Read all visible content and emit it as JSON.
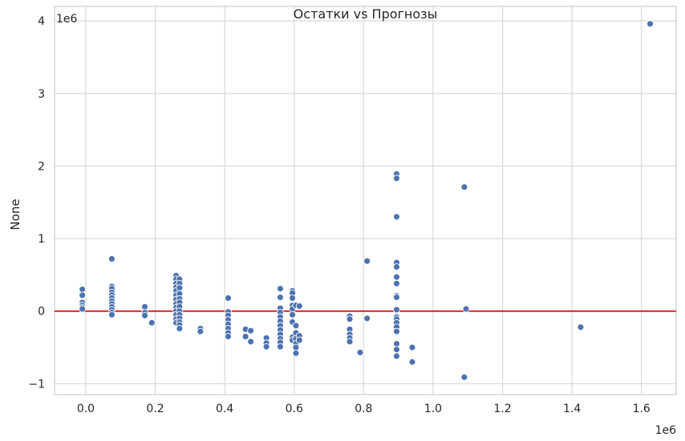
{
  "chart_data": {
    "type": "scatter",
    "title": "Остатки vs Прогнозы",
    "xlabel": "",
    "ylabel": "None",
    "x_offset_label": "1e6",
    "y_offset_label": "1e6",
    "xlim": [
      -0.09,
      1.7
    ],
    "ylim": [
      -1.15,
      4.2
    ],
    "xticks": [
      0.0,
      0.2,
      0.4,
      0.6,
      0.8,
      1.0,
      1.2,
      1.4,
      1.6
    ],
    "xtick_labels": [
      "0.0",
      "0.2",
      "0.4",
      "0.6",
      "0.8",
      "1.0",
      "1.2",
      "1.4",
      "1.6"
    ],
    "yticks": [
      -1,
      0,
      1,
      2,
      3,
      4
    ],
    "ytick_labels": [
      "−1",
      "0",
      "1",
      "2",
      "3",
      "4"
    ],
    "grid": true,
    "reference_line": {
      "y": 0,
      "color": "#e8000b"
    },
    "point_color": "#4c72b0",
    "points": [
      [
        -0.01,
        0.3
      ],
      [
        -0.01,
        0.22
      ],
      [
        -0.01,
        0.12
      ],
      [
        -0.01,
        0.08
      ],
      [
        -0.01,
        0.05
      ],
      [
        -0.01,
        0.03
      ],
      [
        0.075,
        0.72
      ],
      [
        0.075,
        0.34
      ],
      [
        0.075,
        0.31
      ],
      [
        0.075,
        0.26
      ],
      [
        0.075,
        0.22
      ],
      [
        0.075,
        0.18
      ],
      [
        0.075,
        0.14
      ],
      [
        0.075,
        0.1
      ],
      [
        0.075,
        0.06
      ],
      [
        0.075,
        0.02
      ],
      [
        0.075,
        -0.02
      ],
      [
        0.075,
        -0.05
      ],
      [
        0.17,
        0.06
      ],
      [
        0.17,
        -0.02
      ],
      [
        0.17,
        -0.06
      ],
      [
        0.19,
        -0.16
      ],
      [
        0.26,
        0.49
      ],
      [
        0.26,
        0.44
      ],
      [
        0.26,
        0.38
      ],
      [
        0.26,
        0.33
      ],
      [
        0.26,
        0.28
      ],
      [
        0.26,
        0.22
      ],
      [
        0.26,
        0.16
      ],
      [
        0.26,
        0.1
      ],
      [
        0.26,
        0.05
      ],
      [
        0.26,
        0.0
      ],
      [
        0.26,
        -0.05
      ],
      [
        0.26,
        -0.11
      ],
      [
        0.26,
        -0.16
      ],
      [
        0.27,
        0.44
      ],
      [
        0.27,
        0.38
      ],
      [
        0.27,
        0.32
      ],
      [
        0.27,
        0.24
      ],
      [
        0.27,
        0.17
      ],
      [
        0.27,
        0.12
      ],
      [
        0.27,
        0.06
      ],
      [
        0.27,
        0.0
      ],
      [
        0.27,
        -0.05
      ],
      [
        0.27,
        -0.1
      ],
      [
        0.27,
        -0.15
      ],
      [
        0.27,
        -0.19
      ],
      [
        0.27,
        -0.24
      ],
      [
        0.33,
        -0.24
      ],
      [
        0.33,
        -0.28
      ],
      [
        0.41,
        0.18
      ],
      [
        0.41,
        -0.01
      ],
      [
        0.41,
        -0.06
      ],
      [
        0.41,
        -0.12
      ],
      [
        0.41,
        -0.18
      ],
      [
        0.41,
        -0.24
      ],
      [
        0.41,
        -0.3
      ],
      [
        0.41,
        -0.35
      ],
      [
        0.46,
        -0.25
      ],
      [
        0.46,
        -0.35
      ],
      [
        0.475,
        -0.27
      ],
      [
        0.475,
        -0.42
      ],
      [
        0.52,
        -0.37
      ],
      [
        0.52,
        -0.44
      ],
      [
        0.52,
        -0.49
      ],
      [
        0.56,
        0.31
      ],
      [
        0.56,
        0.19
      ],
      [
        0.56,
        0.04
      ],
      [
        0.56,
        -0.02
      ],
      [
        0.56,
        -0.08
      ],
      [
        0.56,
        -0.14
      ],
      [
        0.56,
        -0.2
      ],
      [
        0.56,
        -0.26
      ],
      [
        0.56,
        -0.32
      ],
      [
        0.56,
        -0.38
      ],
      [
        0.56,
        -0.43
      ],
      [
        0.56,
        -0.49
      ],
      [
        0.595,
        0.28
      ],
      [
        0.595,
        0.25
      ],
      [
        0.595,
        0.18
      ],
      [
        0.595,
        0.08
      ],
      [
        0.595,
        0.03
      ],
      [
        0.595,
        -0.05
      ],
      [
        0.595,
        -0.15
      ],
      [
        0.595,
        -0.36
      ],
      [
        0.595,
        -0.4
      ],
      [
        0.605,
        0.08
      ],
      [
        0.605,
        -0.2
      ],
      [
        0.605,
        -0.3
      ],
      [
        0.605,
        -0.38
      ],
      [
        0.605,
        -0.45
      ],
      [
        0.605,
        -0.5
      ],
      [
        0.605,
        -0.58
      ],
      [
        0.615,
        0.07
      ],
      [
        0.615,
        -0.34
      ],
      [
        0.615,
        -0.4
      ],
      [
        0.76,
        -0.07
      ],
      [
        0.76,
        -0.11
      ],
      [
        0.76,
        -0.25
      ],
      [
        0.76,
        -0.32
      ],
      [
        0.76,
        -0.37
      ],
      [
        0.76,
        -0.42
      ],
      [
        0.79,
        -0.57
      ],
      [
        0.81,
        0.69
      ],
      [
        0.81,
        -0.1
      ],
      [
        0.895,
        1.89
      ],
      [
        0.895,
        1.83
      ],
      [
        0.895,
        1.3
      ],
      [
        0.895,
        0.67
      ],
      [
        0.895,
        0.61
      ],
      [
        0.895,
        0.47
      ],
      [
        0.895,
        0.38
      ],
      [
        0.895,
        0.21
      ],
      [
        0.895,
        0.19
      ],
      [
        0.895,
        0.02
      ],
      [
        0.895,
        -0.08
      ],
      [
        0.895,
        -0.11
      ],
      [
        0.895,
        -0.16
      ],
      [
        0.895,
        -0.22
      ],
      [
        0.895,
        -0.28
      ],
      [
        0.895,
        -0.45
      ],
      [
        0.895,
        -0.53
      ],
      [
        0.895,
        -0.62
      ],
      [
        0.94,
        -0.5
      ],
      [
        0.94,
        -0.7
      ],
      [
        1.09,
        1.71
      ],
      [
        1.09,
        -0.91
      ],
      [
        1.095,
        0.03
      ],
      [
        1.425,
        -0.22
      ],
      [
        1.625,
        3.96
      ]
    ]
  }
}
